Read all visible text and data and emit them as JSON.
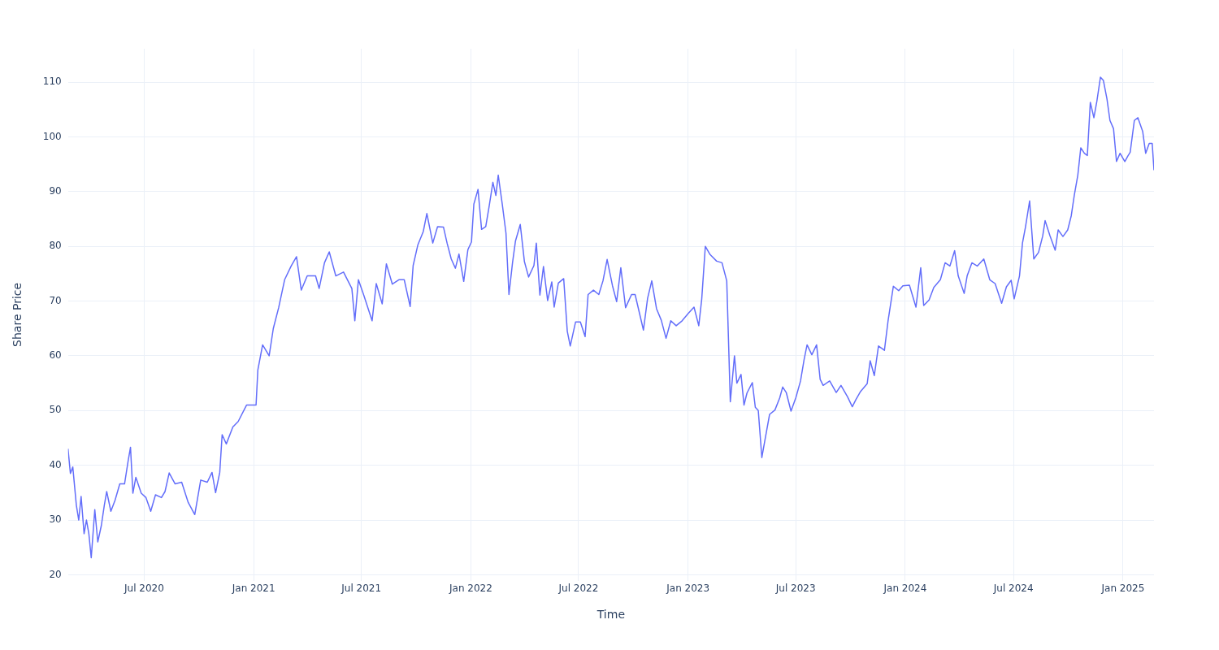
{
  "chart_data": {
    "type": "line",
    "xlabel": "Time",
    "ylabel": "Share Price",
    "grid": true,
    "marker": "none",
    "line_style": "solid",
    "xlim": [
      "2020-02-24",
      "2025-02-22"
    ],
    "xticks": [
      {
        "value": "2020-07-01",
        "label": "Jul 2020"
      },
      {
        "value": "2021-01-01",
        "label": "Jan 2021"
      },
      {
        "value": "2021-07-01",
        "label": "Jul 2021"
      },
      {
        "value": "2022-01-01",
        "label": "Jan 2022"
      },
      {
        "value": "2022-07-01",
        "label": "Jul 2022"
      },
      {
        "value": "2023-01-01",
        "label": "Jan 2023"
      },
      {
        "value": "2023-07-01",
        "label": "Jul 2023"
      },
      {
        "value": "2024-01-01",
        "label": "Jan 2024"
      },
      {
        "value": "2024-07-01",
        "label": "Jul 2024"
      },
      {
        "value": "2025-01-01",
        "label": "Jan 2025"
      }
    ],
    "ylim": [
      18.9,
      116.1
    ],
    "yticks": [
      20,
      30,
      40,
      50,
      60,
      70,
      80,
      90,
      100,
      110
    ],
    "x": [
      "2020-02-24",
      "2020-02-28",
      "2020-03-03",
      "2020-03-09",
      "2020-03-13",
      "2020-03-17",
      "2020-03-22",
      "2020-03-26",
      "2020-03-30",
      "2020-04-03",
      "2020-04-09",
      "2020-04-14",
      "2020-04-20",
      "2020-04-25",
      "2020-04-29",
      "2020-05-06",
      "2020-05-13",
      "2020-05-21",
      "2020-05-29",
      "2020-06-04",
      "2020-06-08",
      "2020-06-12",
      "2020-06-17",
      "2020-06-26",
      "2020-07-04",
      "2020-07-12",
      "2020-07-20",
      "2020-07-30",
      "2020-08-05",
      "2020-08-12",
      "2020-08-22",
      "2020-09-02",
      "2020-09-13",
      "2020-09-24",
      "2020-10-04",
      "2020-10-15",
      "2020-10-23",
      "2020-10-29",
      "2020-11-05",
      "2020-11-09",
      "2020-11-16",
      "2020-11-27",
      "2020-12-06",
      "2020-12-20",
      "2021-01-05",
      "2021-01-08",
      "2021-01-16",
      "2021-01-27",
      "2021-02-03",
      "2021-02-12",
      "2021-02-22",
      "2021-03-05",
      "2021-03-14",
      "2021-03-22",
      "2021-04-01",
      "2021-04-15",
      "2021-04-21",
      "2021-04-30",
      "2021-05-08",
      "2021-05-19",
      "2021-06-01",
      "2021-06-15",
      "2021-06-20",
      "2021-06-26",
      "2021-07-05",
      "2021-07-19",
      "2021-07-26",
      "2021-08-05",
      "2021-08-12",
      "2021-08-22",
      "2021-09-02",
      "2021-09-11",
      "2021-09-21",
      "2021-09-26",
      "2021-10-04",
      "2021-10-13",
      "2021-10-19",
      "2021-10-29",
      "2021-11-06",
      "2021-11-16",
      "2021-11-22",
      "2021-11-29",
      "2021-12-06",
      "2021-12-12",
      "2021-12-20",
      "2021-12-27",
      "2022-01-02",
      "2022-01-06",
      "2022-01-13",
      "2022-01-19",
      "2022-01-26",
      "2022-02-01",
      "2022-02-07",
      "2022-02-12",
      "2022-02-16",
      "2022-02-23",
      "2022-03-01",
      "2022-03-06",
      "2022-03-12",
      "2022-03-17",
      "2022-03-25",
      "2022-04-01",
      "2022-04-08",
      "2022-04-17",
      "2022-04-21",
      "2022-04-27",
      "2022-05-03",
      "2022-05-10",
      "2022-05-17",
      "2022-05-21",
      "2022-05-28",
      "2022-06-06",
      "2022-06-12",
      "2022-06-17",
      "2022-06-26",
      "2022-07-04",
      "2022-07-12",
      "2022-07-17",
      "2022-07-26",
      "2022-08-04",
      "2022-08-11",
      "2022-08-18",
      "2022-08-27",
      "2022-09-03",
      "2022-09-10",
      "2022-09-18",
      "2022-09-28",
      "2022-10-04",
      "2022-10-18",
      "2022-10-25",
      "2022-11-01",
      "2022-11-09",
      "2022-11-17",
      "2022-11-25",
      "2022-12-03",
      "2022-12-12",
      "2022-12-22",
      "2023-01-01",
      "2023-01-11",
      "2023-01-19",
      "2023-01-24",
      "2023-01-30",
      "2023-02-07",
      "2023-02-18",
      "2023-02-27",
      "2023-03-07",
      "2023-03-13",
      "2023-03-20",
      "2023-03-24",
      "2023-03-31",
      "2023-04-05",
      "2023-04-10",
      "2023-04-19",
      "2023-04-24",
      "2023-04-29",
      "2023-05-05",
      "2023-05-10",
      "2023-05-18",
      "2023-05-27",
      "2023-06-04",
      "2023-06-09",
      "2023-06-15",
      "2023-06-23",
      "2023-07-01",
      "2023-07-09",
      "2023-07-15",
      "2023-07-20",
      "2023-07-28",
      "2023-08-05",
      "2023-08-11",
      "2023-08-16",
      "2023-08-27",
      "2023-09-07",
      "2023-09-15",
      "2023-09-26",
      "2023-10-04",
      "2023-10-10",
      "2023-10-18",
      "2023-10-29",
      "2023-11-03",
      "2023-11-10",
      "2023-11-17",
      "2023-11-27",
      "2023-12-03",
      "2023-12-12",
      "2023-12-21",
      "2023-12-28",
      "2024-01-08",
      "2024-01-19",
      "2024-01-27",
      "2024-02-01",
      "2024-02-10",
      "2024-02-18",
      "2024-02-29",
      "2024-03-08",
      "2024-03-16",
      "2024-03-24",
      "2024-03-30",
      "2024-04-09",
      "2024-04-14",
      "2024-04-22",
      "2024-05-01",
      "2024-05-12",
      "2024-05-22",
      "2024-05-31",
      "2024-06-11",
      "2024-06-19",
      "2024-06-27",
      "2024-07-02",
      "2024-07-11",
      "2024-07-16",
      "2024-07-21",
      "2024-07-28",
      "2024-08-04",
      "2024-08-12",
      "2024-08-19",
      "2024-08-23",
      "2024-08-31",
      "2024-09-09",
      "2024-09-14",
      "2024-09-22",
      "2024-09-30",
      "2024-10-06",
      "2024-10-11",
      "2024-10-17",
      "2024-10-22",
      "2024-10-28",
      "2024-11-02",
      "2024-11-07",
      "2024-11-13",
      "2024-11-18",
      "2024-11-24",
      "2024-11-29",
      "2024-12-05",
      "2024-12-10",
      "2024-12-16",
      "2024-12-21",
      "2024-12-27",
      "2025-01-04",
      "2025-01-09",
      "2025-01-13",
      "2025-01-20",
      "2025-01-26",
      "2025-02-03",
      "2025-02-08",
      "2025-02-14",
      "2025-02-19",
      "2025-02-22"
    ],
    "series": [
      {
        "color": "#636efa",
        "values": [
          43.0,
          38.5,
          39.7,
          32.7,
          30.0,
          34.3,
          27.5,
          30.0,
          27.5,
          23.1,
          31.9,
          26.0,
          29.0,
          32.7,
          35.2,
          31.6,
          33.6,
          36.6,
          36.6,
          40.8,
          43.3,
          34.9,
          37.8,
          34.9,
          34.1,
          31.6,
          34.6,
          34.1,
          35.2,
          38.6,
          36.6,
          36.9,
          33.2,
          31.0,
          37.3,
          36.9,
          38.7,
          35.0,
          38.7,
          45.6,
          43.9,
          47.0,
          48.0,
          51.0,
          51.0,
          57.4,
          62.0,
          60.0,
          65.0,
          68.8,
          73.9,
          76.4,
          78.1,
          72.0,
          74.6,
          74.6,
          72.3,
          77.0,
          79.0,
          74.6,
          75.3,
          72.3,
          66.4,
          73.9,
          71.1,
          66.4,
          73.2,
          69.5,
          76.8,
          73.1,
          73.9,
          73.9,
          69.0,
          76.5,
          80.3,
          82.7,
          86.0,
          80.6,
          83.6,
          83.5,
          80.6,
          77.7,
          76.0,
          78.6,
          73.6,
          79.4,
          80.8,
          87.7,
          90.4,
          83.1,
          83.6,
          87.5,
          91.7,
          89.3,
          93.0,
          87.5,
          82.4,
          71.2,
          77.0,
          81.0,
          84.0,
          77.2,
          74.4,
          76.5,
          80.6,
          71.1,
          76.3,
          70.1,
          73.5,
          68.9,
          73.3,
          74.1,
          64.5,
          61.8,
          66.2,
          66.2,
          63.5,
          71.2,
          72.0,
          71.2,
          73.7,
          77.6,
          72.8,
          69.9,
          76.1,
          68.8,
          71.2,
          71.2,
          64.7,
          70.5,
          73.7,
          68.6,
          66.5,
          63.2,
          66.4,
          65.5,
          66.4,
          67.7,
          68.9,
          65.5,
          70.4,
          80.0,
          78.5,
          77.3,
          77.0,
          73.7,
          51.6,
          60.0,
          55.0,
          56.6,
          51.0,
          53.2,
          55.1,
          50.6,
          50.0,
          41.4,
          44.5,
          49.3,
          50.1,
          52.3,
          54.3,
          53.3,
          49.9,
          52.3,
          55.4,
          59.3,
          62.0,
          60.2,
          62.0,
          55.7,
          54.6,
          55.4,
          53.3,
          54.6,
          52.5,
          50.7,
          52.0,
          53.5,
          54.9,
          59.1,
          56.4,
          61.8,
          61.0,
          66.3,
          72.7,
          71.9,
          72.8,
          72.9,
          68.9,
          76.1,
          69.2,
          70.2,
          72.5,
          73.9,
          77.0,
          76.4,
          79.2,
          74.6,
          71.4,
          74.6,
          77.0,
          76.4,
          77.7,
          73.9,
          73.2,
          69.6,
          72.6,
          73.8,
          70.4,
          74.6,
          80.6,
          83.5,
          88.3,
          77.7,
          78.9,
          81.9,
          84.7,
          82.0,
          79.3,
          83.0,
          81.8,
          83.0,
          85.6,
          89.3,
          93.0,
          98.0,
          97.0,
          96.6,
          106.3,
          103.5,
          106.5,
          110.9,
          110.3,
          106.9,
          103.0,
          101.5,
          95.5,
          97.0,
          95.5,
          96.5,
          97.2,
          103.0,
          103.5,
          101.0,
          97.0,
          98.8,
          98.8,
          93.9
        ]
      }
    ]
  }
}
